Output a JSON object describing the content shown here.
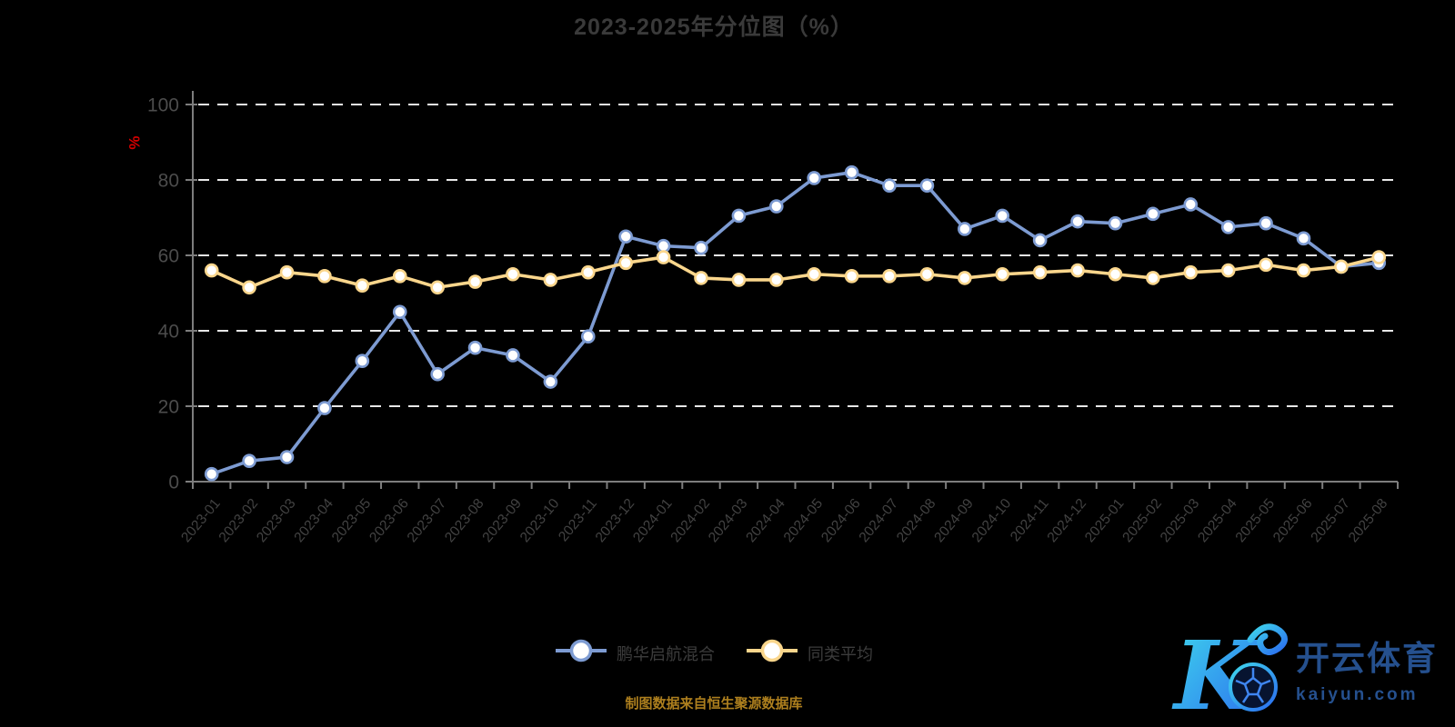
{
  "title": "2023-2025年分位图（%）",
  "y_axis_unit": "%",
  "subtitle": "制图数据来自恒生聚源数据库",
  "legend": {
    "items": [
      {
        "label": "鹏华启航混合"
      },
      {
        "label": "同类平均"
      }
    ]
  },
  "logo": {
    "monogram": "K",
    "brand": "开云体育",
    "domain": "kaiyun.com"
  },
  "colors": {
    "background": "#000000",
    "series_fund_blue": "#7d9bd2",
    "series_average_yellow": "#fad68c",
    "grid_white": "#e8e8e8",
    "axis_gray": "#7d7d7d",
    "y_tick_label": "#4c4c4c",
    "x_tick_label": "#424242",
    "title_gray": "#3a3a3a",
    "unit_red": "#d40000",
    "subtitle_gold": "#ad7f1e",
    "logo_blue": "#25508e",
    "logo_gradient_start": "#3fd8ec",
    "logo_gradient_end": "#2b6cf0"
  },
  "chart_data": {
    "type": "line",
    "title": "2023-2025年分位图（%）",
    "ylabel": "%",
    "xlabel": "",
    "ylim": [
      0,
      100
    ],
    "yticks": [
      0,
      20,
      40,
      60,
      80,
      100
    ],
    "grid": "dashed-horizontal",
    "legend_position": "bottom",
    "categories": [
      "2023-01",
      "2023-02",
      "2023-03",
      "2023-04",
      "2023-05",
      "2023-06",
      "2023-07",
      "2023-08",
      "2023-09",
      "2023-10",
      "2023-11",
      "2023-12",
      "2024-01",
      "2024-02",
      "2024-03",
      "2024-04",
      "2024-05",
      "2024-06",
      "2024-07",
      "2024-08",
      "2024-09",
      "2024-10",
      "2024-11",
      "2024-12",
      "2025-01",
      "2025-02",
      "2025-03",
      "2025-04",
      "2025-05",
      "2025-06",
      "2025-07",
      "2025-08"
    ],
    "series": [
      {
        "name": "鹏华启航混合",
        "color": "#7d9bd2",
        "values": [
          2,
          5.5,
          6.5,
          19.5,
          32,
          45,
          28.5,
          35.5,
          33.5,
          26.5,
          38.5,
          65,
          62.5,
          62,
          70.5,
          73,
          80.5,
          82,
          78.5,
          78.5,
          67,
          70.5,
          64,
          69,
          68.5,
          71,
          73.5,
          67.5,
          68.5,
          64.5,
          57,
          58
        ]
      },
      {
        "name": "同类平均",
        "color": "#fad68c",
        "values": [
          56,
          51.5,
          55.5,
          54.5,
          52,
          54.5,
          51.5,
          53,
          55,
          53.5,
          55.5,
          58,
          59.5,
          54,
          53.5,
          53.5,
          55,
          54.5,
          54.5,
          55,
          54,
          55,
          55.5,
          56,
          55,
          54,
          55.5,
          56,
          57.5,
          56,
          57,
          59.5
        ]
      }
    ]
  }
}
